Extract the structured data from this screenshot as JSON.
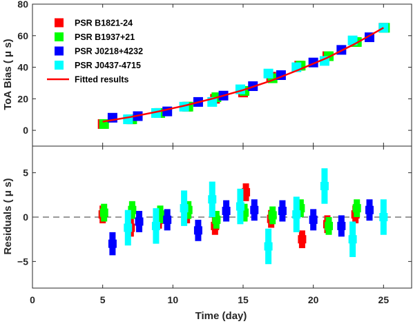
{
  "chart_data": [
    {
      "type": "scatter",
      "panel": "top",
      "ylabel": "ToA Bias ( μ s)",
      "xlabel": "",
      "xlim": [
        0,
        27
      ],
      "ylim": [
        -10,
        80
      ],
      "xticks": [
        0,
        5,
        10,
        15,
        20,
        25
      ],
      "yticks": [
        0,
        20,
        40,
        60,
        80
      ],
      "legend_position": "top-left",
      "series": [
        {
          "name": "PSR B1821-24",
          "color": "#ff0000",
          "marker": "square",
          "x": [
            5,
            7,
            9,
            11,
            13,
            15,
            17,
            19,
            21,
            23,
            25
          ],
          "y": [
            4,
            7,
            11,
            15,
            20,
            24,
            34,
            41,
            47,
            56,
            65
          ]
        },
        {
          "name": "PSR B1937+21",
          "color": "#00ff00",
          "marker": "square",
          "x": [
            5.1,
            7.1,
            9.1,
            11.1,
            13.1,
            15.1,
            17.1,
            19.1,
            21.1,
            23.1,
            25.1
          ],
          "y": [
            4,
            7,
            11,
            15,
            21,
            25,
            33,
            41,
            47,
            56,
            65
          ]
        },
        {
          "name": "PSR J0218+4232",
          "color": "#0000ff",
          "marker": "square",
          "x": [
            5.7,
            7.5,
            9.6,
            11.8,
            13.6,
            15.7,
            17.7,
            20,
            22,
            24
          ],
          "y": [
            8,
            9,
            12,
            18,
            22,
            28,
            35,
            43,
            51,
            59
          ]
        },
        {
          "name": "PSR J0437-4715",
          "color": "#00ffff",
          "marker": "square",
          "x": [
            6.8,
            8.8,
            10.8,
            12.8,
            14.8,
            16.8,
            18.8,
            20.8,
            22.8,
            25
          ],
          "y": [
            7,
            11,
            15,
            18,
            26,
            36,
            40,
            44,
            57,
            65
          ]
        },
        {
          "name": "Fitted results",
          "color": "#ff0000",
          "marker": "line",
          "x": [
            5,
            7,
            9,
            11,
            13,
            15,
            17,
            19,
            21,
            23,
            25
          ],
          "y": [
            5.5,
            8.5,
            12,
            16,
            20.5,
            25.5,
            31.5,
            38.5,
            46,
            55,
            65
          ]
        }
      ]
    },
    {
      "type": "scatter",
      "panel": "bottom",
      "ylabel": "Residuals ( μ s)",
      "xlabel": "Time (day)",
      "xlim": [
        0,
        27
      ],
      "ylim": [
        -8,
        8
      ],
      "xticks": [
        0,
        5,
        10,
        15,
        20,
        25
      ],
      "yticks": [
        -5,
        0,
        5
      ],
      "reference_line": {
        "y": 0,
        "style": "dashed"
      },
      "series": [
        {
          "name": "PSR B1821-24",
          "color": "#ff0000",
          "x": [
            5,
            7,
            9,
            11,
            13,
            15.2,
            17,
            19.2,
            21,
            23
          ],
          "y": [
            0.3,
            -1.2,
            -0.3,
            0.3,
            -1.0,
            2.8,
            -0.2,
            -2.5,
            -0.8,
            0.3
          ],
          "err": [
            1.0,
            1.0,
            1.0,
            1.0,
            1.0,
            1.0,
            1.0,
            1.0,
            1.0,
            1.0
          ]
        },
        {
          "name": "PSR B1937+21",
          "color": "#00ff00",
          "x": [
            5.1,
            7.1,
            9.1,
            11.1,
            13.1,
            15.1,
            17.1,
            19.1,
            21.1,
            23.1
          ],
          "y": [
            0.5,
            0.8,
            0.3,
            0.8,
            -0.3,
            0.5,
            0.2,
            1.0,
            -1.0,
            1.0
          ],
          "err": [
            1.0,
            1.0,
            1.0,
            1.0,
            1.0,
            1.0,
            1.0,
            1.0,
            1.0,
            1.0
          ]
        },
        {
          "name": "PSR J0218+4232",
          "color": "#0000ff",
          "x": [
            5.7,
            7.6,
            9.6,
            11.8,
            13.8,
            15.8,
            17.8,
            20,
            22,
            24
          ],
          "y": [
            -3.0,
            -0.5,
            -0.3,
            -1.5,
            0.7,
            0.8,
            0.7,
            -0.3,
            -1.0,
            0.8
          ],
          "err": [
            1.3,
            1.2,
            1.2,
            1.2,
            1.2,
            1.2,
            1.2,
            1.2,
            1.2,
            1.2
          ]
        },
        {
          "name": "PSR J0437-4715",
          "color": "#00ffff",
          "x": [
            6.8,
            8.8,
            10.8,
            12.8,
            14.8,
            16.8,
            18.8,
            20.8,
            22.8,
            25
          ],
          "y": [
            -1.2,
            -1.0,
            1.0,
            2.0,
            1.2,
            -3.3,
            0.3,
            3.5,
            -2.5,
            0.0
          ],
          "err": [
            2.0,
            2.0,
            2.0,
            2.0,
            2.0,
            2.0,
            2.0,
            2.0,
            2.0,
            2.0
          ]
        }
      ]
    }
  ]
}
